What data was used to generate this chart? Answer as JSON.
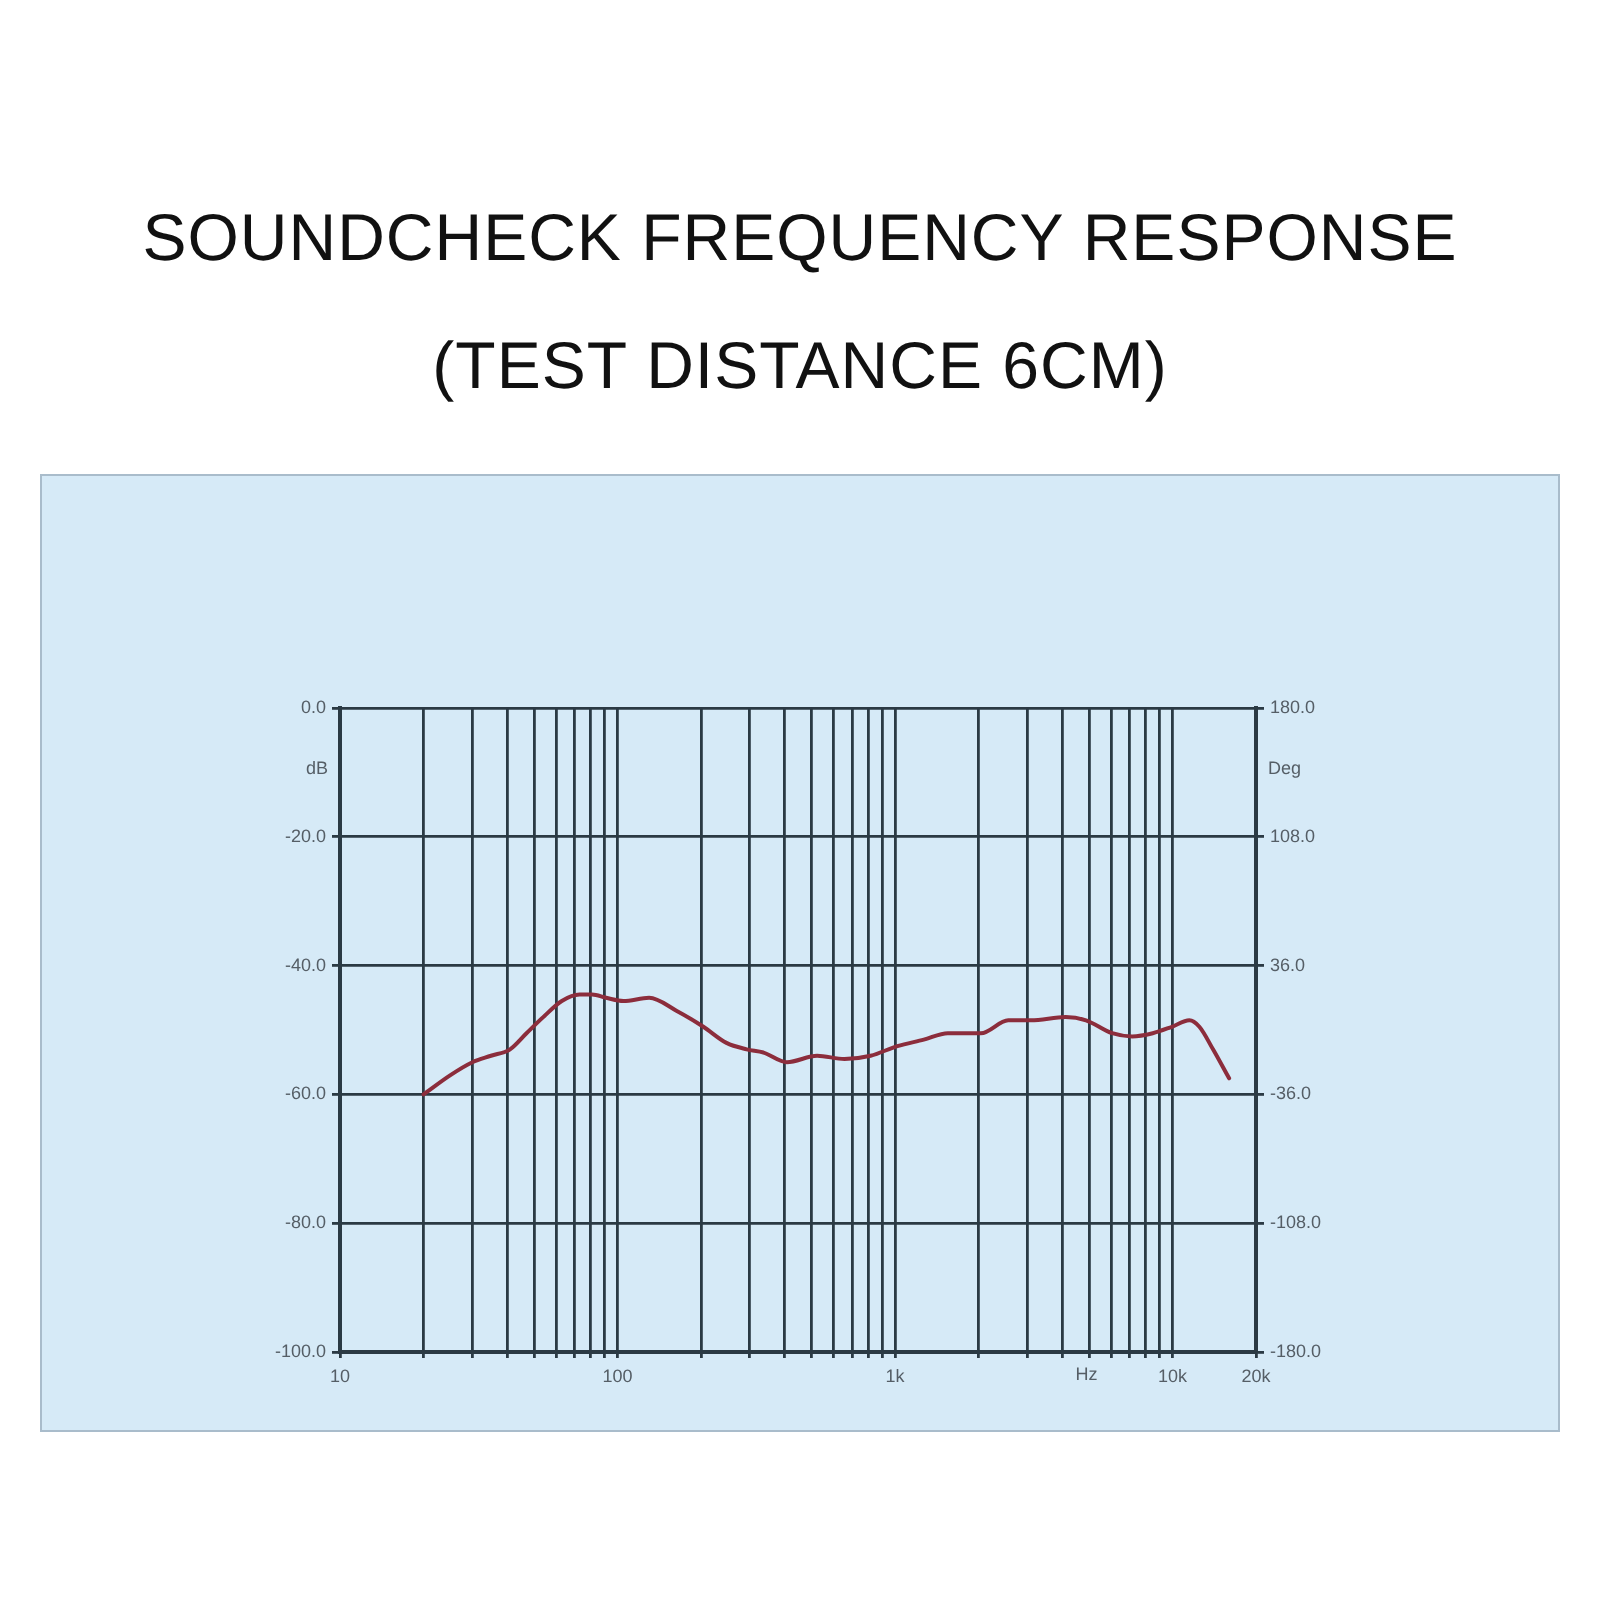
{
  "chart_data": {
    "type": "line",
    "title": "SOUNDCHECK FREQUENCY RESPONSE",
    "subtitle": "(TEST DISTANCE 6CM)",
    "xlabel": "Hz",
    "ylabel": "dB",
    "y2label": "Deg",
    "x": [
      20,
      25,
      30,
      35,
      41,
      47,
      54,
      63,
      73,
      81,
      91,
      105,
      130,
      163,
      204,
      247,
      292,
      336,
      408,
      524,
      658,
      817,
      1020,
      1270,
      1550,
      2040,
      2560,
      3090,
      4120,
      4880,
      6060,
      7160,
      8490,
      9960,
      11500,
      12500,
      14000,
      16000
    ],
    "series": [
      {
        "color": "#8c2d3c",
        "values": [
          -60,
          -57,
          -55,
          -54,
          -53,
          -50.5,
          -48,
          -45.5,
          -44.5,
          -44.5,
          -45,
          -45.5,
          -45,
          -47,
          -49.5,
          -52,
          -53,
          -53.5,
          -55,
          -54,
          -54.5,
          -54,
          -52.5,
          -51.5,
          -50.5,
          -50.5,
          -48.5,
          -48.5,
          -48,
          -48.5,
          -50.5,
          -51,
          -50.5,
          -49.5,
          -48.5,
          -49.5,
          -53,
          -57.5
        ]
      }
    ],
    "xlim": [
      10,
      20000
    ],
    "xticks": [
      {
        "value": 10,
        "label": "10"
      },
      {
        "value": 20,
        "label": null
      },
      {
        "value": 30,
        "label": null
      },
      {
        "value": 40,
        "label": null
      },
      {
        "value": 50,
        "label": null
      },
      {
        "value": 60,
        "label": null
      },
      {
        "value": 70,
        "label": null
      },
      {
        "value": 80,
        "label": null
      },
      {
        "value": 90,
        "label": null
      },
      {
        "value": 100,
        "label": "100"
      },
      {
        "value": 200,
        "label": null
      },
      {
        "value": 300,
        "label": null
      },
      {
        "value": 400,
        "label": null
      },
      {
        "value": 500,
        "label": null
      },
      {
        "value": 600,
        "label": null
      },
      {
        "value": 700,
        "label": null
      },
      {
        "value": 800,
        "label": null
      },
      {
        "value": 900,
        "label": null
      },
      {
        "value": 1000,
        "label": "1k"
      },
      {
        "value": 2000,
        "label": null
      },
      {
        "value": 3000,
        "label": null
      },
      {
        "value": 4000,
        "label": null
      },
      {
        "value": 5000,
        "label": null
      },
      {
        "value": 6000,
        "label": null
      },
      {
        "value": 7000,
        "label": null
      },
      {
        "value": 8000,
        "label": null
      },
      {
        "value": 9000,
        "label": null
      },
      {
        "value": 10000,
        "label": "10k"
      },
      {
        "value": 20000,
        "label": "20k"
      }
    ],
    "ylim": [
      -100,
      0
    ],
    "yticks": [
      {
        "value": 0,
        "label": "0.0"
      },
      {
        "value": -20,
        "label": "-20.0"
      },
      {
        "value": -40,
        "label": "-40.0"
      },
      {
        "value": -60,
        "label": "-60.0"
      },
      {
        "value": -80,
        "label": "-80.0"
      },
      {
        "value": -100,
        "label": "-100.0"
      }
    ],
    "y2lim": [
      -180,
      180
    ],
    "y2ticks": [
      {
        "value": 180,
        "label": "180.0"
      },
      {
        "value": 108,
        "label": "108.0"
      },
      {
        "value": 36,
        "label": "36.0"
      },
      {
        "value": -36,
        "label": "-36.0"
      },
      {
        "value": -108,
        "label": "-108.0"
      },
      {
        "value": -180,
        "label": "-180.0"
      }
    ],
    "log": "x",
    "grid": true,
    "marker": "none"
  }
}
